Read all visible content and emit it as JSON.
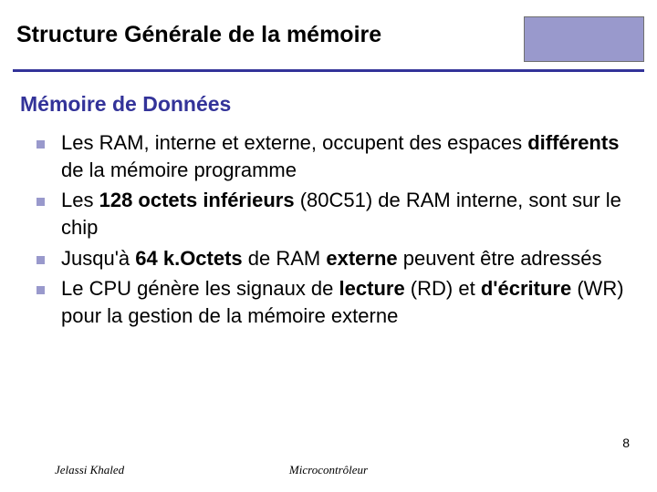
{
  "title": "Structure Générale de la mémoire",
  "subtitle": "Mémoire de Données",
  "accent_box_color": "#9999cc",
  "rule_color": "#333399",
  "subtitle_color": "#333399",
  "bullet_marker_color": "#9999cc",
  "bullets": [
    {
      "html": "Les RAM, interne et externe, occupent des espaces <b>différents</b> de la mémoire programme"
    },
    {
      "html": "Les <b>128 octets inférieurs</b> (80C51) de RAM interne, sont sur le chip"
    },
    {
      "html": "Jusqu'à <b>64 k.Octets</b> de RAM <b>externe</b> peuvent être adressés"
    },
    {
      "html": "Le CPU génère les signaux de <b>lecture</b> (RD) et <b>d'écriture</b> (WR) pour la gestion de la mémoire externe"
    }
  ],
  "footer_left": "Jelassi Khaled",
  "footer_center": "Microcontrôleur",
  "page_number": "8"
}
